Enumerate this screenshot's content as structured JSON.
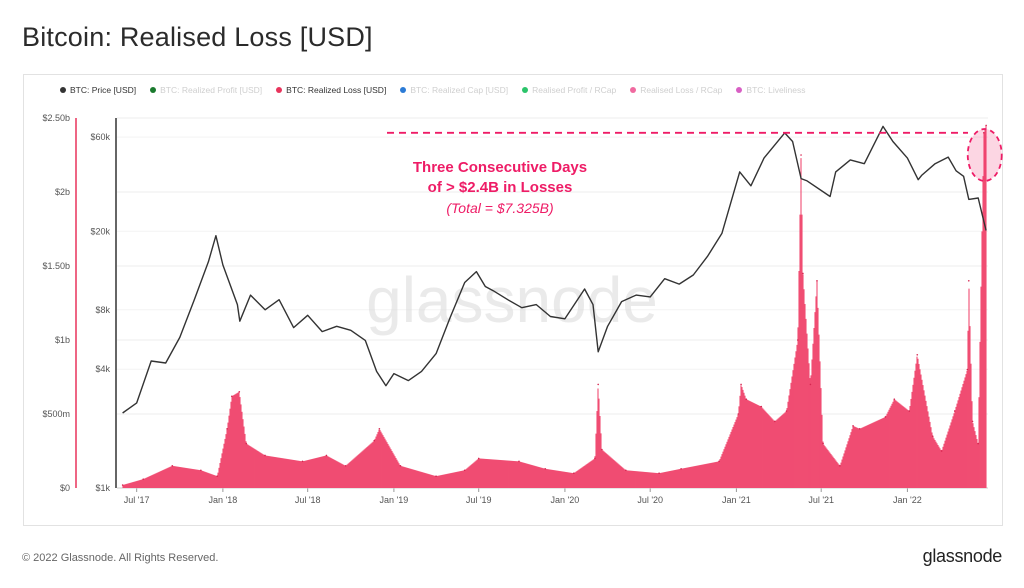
{
  "page_title": "Bitcoin: Realised Loss [USD]",
  "legend": [
    {
      "label": "BTC: Price [USD]",
      "color": "#333333",
      "active": true
    },
    {
      "label": "BTC: Realized Profit [USD]",
      "color": "#1a7a2e",
      "active": false
    },
    {
      "label": "BTC: Realized Loss [USD]",
      "color": "#e8345c",
      "active": true
    },
    {
      "label": "BTC: Realized Cap [USD]",
      "color": "#2b7bd6",
      "active": false
    },
    {
      "label": "Realised Profit / RCap",
      "color": "#2bc46a",
      "active": false
    },
    {
      "label": "Realised Loss / RCap",
      "color": "#f06aa0",
      "active": false
    },
    {
      "label": "BTC: Liveliness",
      "color": "#d85fc4",
      "active": false
    }
  ],
  "annotation": {
    "line1": "Three Consecutive Days",
    "line2": "of > $2.4B in Losses",
    "line3": "(Total = $7.325B)",
    "color": "#ee1c66"
  },
  "watermark": "glassnode",
  "footer": {
    "copyright": "© 2022 Glassnode. All Rights Reserved.",
    "logo": "glassnode"
  },
  "chart_data": {
    "type": "line",
    "title": "Bitcoin: Realised Loss [USD]",
    "x_ticks": [
      "Jul '17",
      "Jan '18",
      "Jul '18",
      "Jan '19",
      "Jul '19",
      "Jan '20",
      "Jul '20",
      "Jan '21",
      "Jul '21",
      "Jan '22"
    ],
    "left_axis": {
      "label": "",
      "ticks": [
        "$0",
        "$500m",
        "$1b",
        "$1.50b",
        "$2b",
        "$2.50b"
      ],
      "range": [
        0,
        2500000000
      ]
    },
    "right_axis": {
      "label": "",
      "scale": "log",
      "ticks": [
        "$1k",
        "$4k",
        "$8k",
        "$20k",
        "$60k"
      ],
      "range": [
        1000,
        75000
      ]
    },
    "series": [
      {
        "name": "BTC: Price [USD]",
        "axis": "right",
        "color": "#333333",
        "x": [
          "2017-06-01",
          "2017-07-01",
          "2017-08-01",
          "2017-09-01",
          "2017-10-01",
          "2017-11-01",
          "2017-12-01",
          "2017-12-17",
          "2018-01-01",
          "2018-02-01",
          "2018-02-06",
          "2018-03-01",
          "2018-04-01",
          "2018-05-01",
          "2018-06-01",
          "2018-07-01",
          "2018-08-01",
          "2018-09-01",
          "2018-10-01",
          "2018-11-01",
          "2018-11-25",
          "2018-12-15",
          "2019-01-01",
          "2019-02-01",
          "2019-03-01",
          "2019-04-01",
          "2019-05-01",
          "2019-06-01",
          "2019-06-26",
          "2019-07-15",
          "2019-08-01",
          "2019-09-01",
          "2019-10-01",
          "2019-11-01",
          "2019-12-01",
          "2020-01-01",
          "2020-02-12",
          "2020-03-01",
          "2020-03-12",
          "2020-04-01",
          "2020-05-01",
          "2020-06-01",
          "2020-07-01",
          "2020-08-01",
          "2020-09-01",
          "2020-10-01",
          "2020-11-01",
          "2020-12-01",
          "2021-01-08",
          "2021-02-01",
          "2021-03-01",
          "2021-04-14",
          "2021-05-01",
          "2021-05-19",
          "2021-06-01",
          "2021-07-20",
          "2021-08-01",
          "2021-09-01",
          "2021-10-01",
          "2021-11-10",
          "2021-12-01",
          "2022-01-01",
          "2022-01-24",
          "2022-02-01",
          "2022-03-01",
          "2022-03-29",
          "2022-04-15",
          "2022-05-01",
          "2022-05-12",
          "2022-06-01",
          "2022-06-13",
          "2022-06-18"
        ],
        "values": [
          2400,
          2700,
          4400,
          4300,
          5800,
          9000,
          14000,
          19000,
          13500,
          8500,
          7000,
          9500,
          8000,
          9000,
          6500,
          7500,
          6200,
          6600,
          6300,
          5600,
          3900,
          3300,
          3800,
          3500,
          3900,
          4800,
          7300,
          11000,
          12500,
          10500,
          10000,
          9000,
          8200,
          8500,
          7400,
          7200,
          10200,
          8500,
          4900,
          6600,
          8800,
          9500,
          9300,
          11500,
          10800,
          12000,
          15000,
          19500,
          40000,
          34000,
          47000,
          63000,
          57000,
          37000,
          36000,
          30000,
          40000,
          46000,
          44000,
          68000,
          57000,
          47000,
          36500,
          38500,
          44000,
          47500,
          40500,
          38000,
          29000,
          29500,
          22500,
          20200
        ]
      },
      {
        "name": "BTC: Realized Loss [USD]",
        "axis": "left",
        "color": "#e8345c",
        "x": [
          "2017-06-01",
          "2017-07-15",
          "2017-09-15",
          "2017-11-15",
          "2017-12-20",
          "2018-01-10",
          "2018-01-20",
          "2018-02-05",
          "2018-02-20",
          "2018-04-01",
          "2018-06-20",
          "2018-08-10",
          "2018-09-20",
          "2018-11-20",
          "2018-12-01",
          "2019-01-15",
          "2019-04-01",
          "2019-06-01",
          "2019-07-01",
          "2019-09-25",
          "2019-11-20",
          "2020-01-20",
          "2020-03-05",
          "2020-03-12",
          "2020-03-20",
          "2020-05-10",
          "2020-07-20",
          "2020-09-05",
          "2020-11-25",
          "2021-01-05",
          "2021-01-11",
          "2021-01-22",
          "2021-02-23",
          "2021-03-24",
          "2021-04-18",
          "2021-05-12",
          "2021-05-19",
          "2021-05-23",
          "2021-06-08",
          "2021-06-22",
          "2021-07-05",
          "2021-08-10",
          "2021-09-07",
          "2021-09-21",
          "2021-11-15",
          "2021-12-04",
          "2022-01-05",
          "2022-01-22",
          "2022-02-24",
          "2022-03-15",
          "2022-04-12",
          "2022-05-09",
          "2022-05-12",
          "2022-05-20",
          "2022-06-01",
          "2022-06-13",
          "2022-06-18"
        ],
        "values": [
          20000000,
          60000000,
          150000000,
          120000000,
          80000000,
          400000000,
          620000000,
          650000000,
          300000000,
          220000000,
          180000000,
          220000000,
          150000000,
          320000000,
          400000000,
          150000000,
          80000000,
          120000000,
          200000000,
          180000000,
          130000000,
          100000000,
          200000000,
          700000000,
          260000000,
          120000000,
          100000000,
          130000000,
          180000000,
          500000000,
          700000000,
          600000000,
          550000000,
          450000000,
          520000000,
          1000000000,
          2250000000,
          1450000000,
          700000000,
          1400000000,
          300000000,
          150000000,
          420000000,
          400000000,
          480000000,
          600000000,
          520000000,
          900000000,
          350000000,
          250000000,
          520000000,
          800000000,
          1400000000,
          450000000,
          300000000,
          2400000000,
          2450000000
        ]
      }
    ],
    "grid": true,
    "legend_position": "top-left",
    "colors": {
      "loss_fill": "#f04d72",
      "price_line": "#333333",
      "annotation": "#ee1c66",
      "left_axis_line": "#e8345c"
    }
  }
}
